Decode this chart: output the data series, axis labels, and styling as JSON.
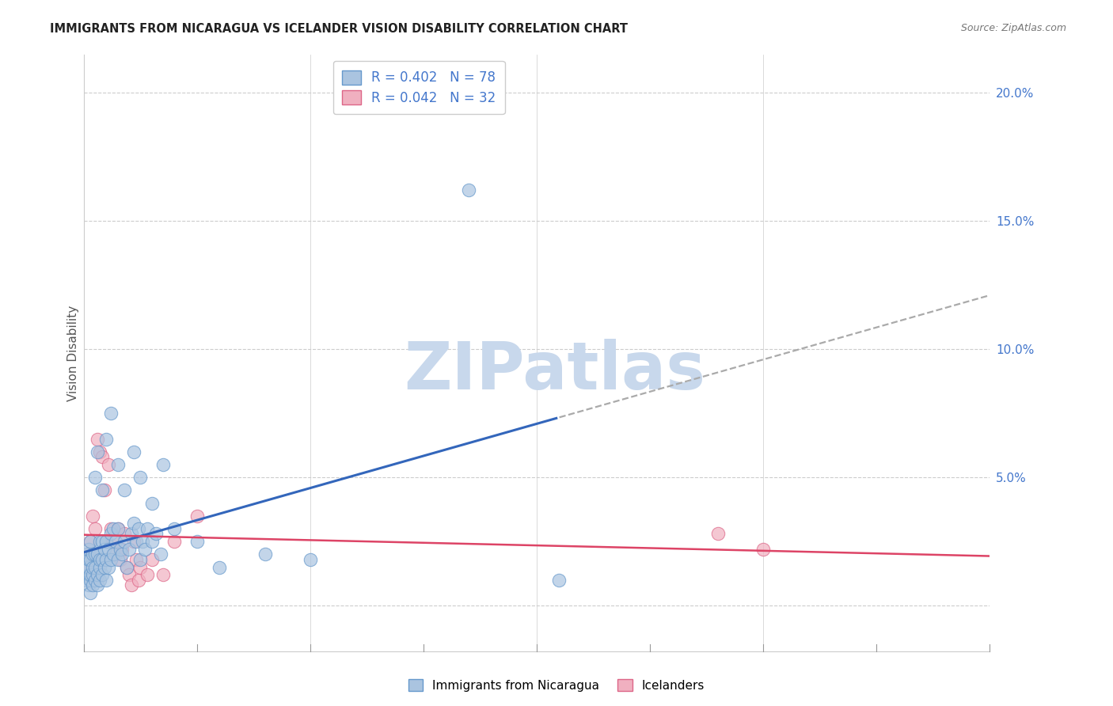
{
  "title": "IMMIGRANTS FROM NICARAGUA VS ICELANDER VISION DISABILITY CORRELATION CHART",
  "source": "Source: ZipAtlas.com",
  "ylabel": "Vision Disability",
  "yticks": [
    0.0,
    0.05,
    0.1,
    0.15,
    0.2
  ],
  "ytick_labels": [
    "",
    "5.0%",
    "10.0%",
    "15.0%",
    "20.0%"
  ],
  "xlim": [
    0.0,
    0.4
  ],
  "ylim": [
    -0.018,
    0.215
  ],
  "legend_r1": "R = 0.402   N = 78",
  "legend_r2": "R = 0.042   N = 32",
  "legend_cat1": "Immigrants from Nicaragua",
  "legend_cat2": "Icelanders",
  "series1_facecolor": "#aac4e0",
  "series1_edgecolor": "#6699cc",
  "series2_facecolor": "#f0b0c0",
  "series2_edgecolor": "#dd6688",
  "trendline1_color": "#3366bb",
  "trendline2_color": "#dd4466",
  "trendline_ext_color": "#aaaaaa",
  "background_color": "#ffffff",
  "grid_color": "#cccccc",
  "axis_label_color": "#4477cc",
  "title_color": "#222222",
  "source_color": "#777777",
  "watermark_text": "ZIPatlas",
  "watermark_color": "#c8d8ec",
  "blue_x": [
    0.001,
    0.001,
    0.001,
    0.002,
    0.002,
    0.002,
    0.002,
    0.002,
    0.003,
    0.003,
    0.003,
    0.003,
    0.003,
    0.004,
    0.004,
    0.004,
    0.004,
    0.005,
    0.005,
    0.005,
    0.006,
    0.006,
    0.006,
    0.007,
    0.007,
    0.007,
    0.007,
    0.008,
    0.008,
    0.008,
    0.009,
    0.009,
    0.01,
    0.01,
    0.01,
    0.011,
    0.011,
    0.012,
    0.012,
    0.013,
    0.013,
    0.014,
    0.015,
    0.015,
    0.016,
    0.017,
    0.018,
    0.019,
    0.02,
    0.021,
    0.022,
    0.023,
    0.024,
    0.025,
    0.026,
    0.027,
    0.028,
    0.03,
    0.032,
    0.034,
    0.005,
    0.006,
    0.008,
    0.01,
    0.012,
    0.015,
    0.018,
    0.022,
    0.025,
    0.03,
    0.035,
    0.04,
    0.05,
    0.06,
    0.08,
    0.1,
    0.17,
    0.21
  ],
  "blue_y": [
    0.01,
    0.015,
    0.02,
    0.008,
    0.012,
    0.015,
    0.018,
    0.022,
    0.005,
    0.01,
    0.012,
    0.018,
    0.025,
    0.008,
    0.012,
    0.015,
    0.02,
    0.01,
    0.015,
    0.02,
    0.008,
    0.012,
    0.02,
    0.01,
    0.015,
    0.018,
    0.025,
    0.012,
    0.018,
    0.025,
    0.015,
    0.022,
    0.01,
    0.018,
    0.025,
    0.015,
    0.022,
    0.018,
    0.028,
    0.02,
    0.03,
    0.025,
    0.018,
    0.03,
    0.022,
    0.02,
    0.025,
    0.015,
    0.022,
    0.028,
    0.032,
    0.025,
    0.03,
    0.018,
    0.025,
    0.022,
    0.03,
    0.025,
    0.028,
    0.02,
    0.05,
    0.06,
    0.045,
    0.065,
    0.075,
    0.055,
    0.045,
    0.06,
    0.05,
    0.04,
    0.055,
    0.03,
    0.025,
    0.015,
    0.02,
    0.018,
    0.162,
    0.01
  ],
  "pink_x": [
    0.001,
    0.002,
    0.003,
    0.004,
    0.005,
    0.006,
    0.007,
    0.008,
    0.009,
    0.01,
    0.011,
    0.012,
    0.013,
    0.014,
    0.015,
    0.016,
    0.017,
    0.018,
    0.019,
    0.02,
    0.021,
    0.022,
    0.023,
    0.024,
    0.025,
    0.028,
    0.03,
    0.035,
    0.04,
    0.05,
    0.28,
    0.3
  ],
  "pink_y": [
    0.015,
    0.02,
    0.025,
    0.035,
    0.03,
    0.065,
    0.06,
    0.058,
    0.045,
    0.025,
    0.055,
    0.03,
    0.025,
    0.02,
    0.03,
    0.018,
    0.022,
    0.028,
    0.015,
    0.012,
    0.008,
    0.025,
    0.018,
    0.01,
    0.015,
    0.012,
    0.018,
    0.012,
    0.025,
    0.035,
    0.028,
    0.022
  ]
}
